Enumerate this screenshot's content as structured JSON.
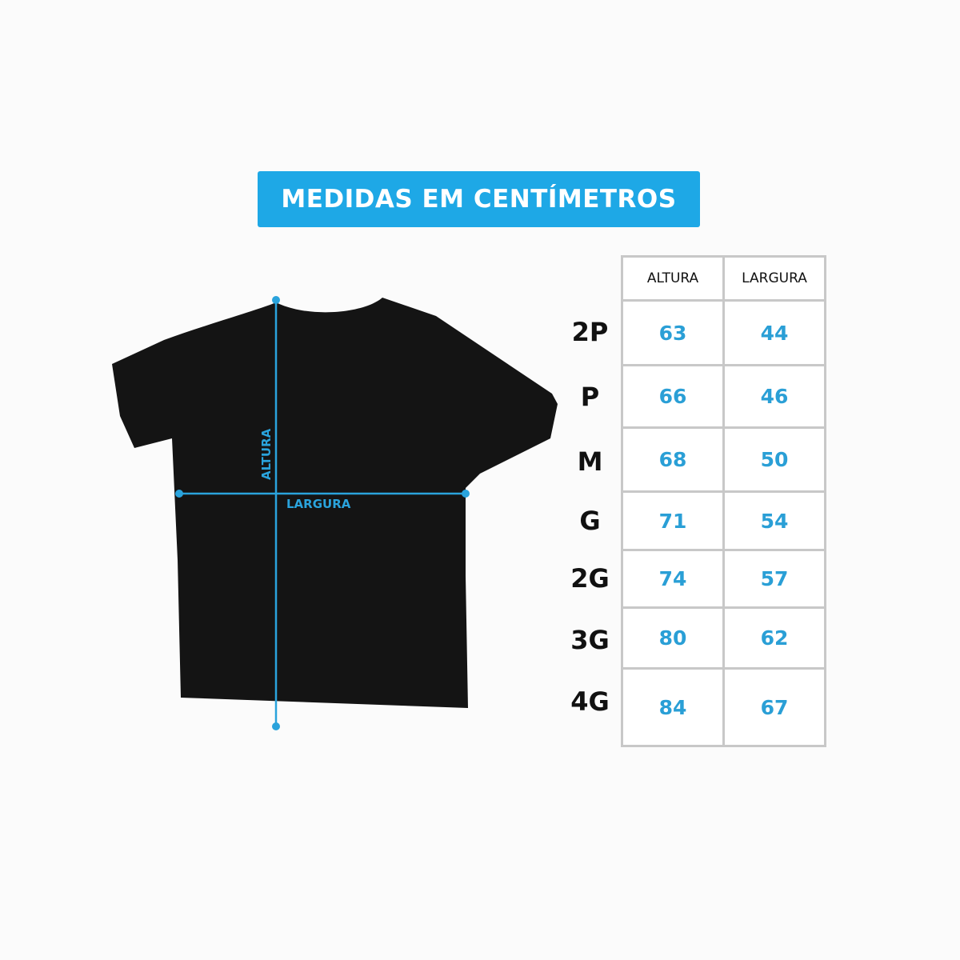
{
  "banner": {
    "title": "MEDIDAS EM CENTÍMETROS"
  },
  "diagram": {
    "height_label": "ALTURA",
    "width_label": "LARGURA"
  },
  "table": {
    "headers": [
      "ALTURA",
      "LARGURA"
    ],
    "rows": [
      {
        "size": "2P",
        "altura": "63",
        "largura": "44"
      },
      {
        "size": "P",
        "altura": "66",
        "largura": "46"
      },
      {
        "size": "M",
        "altura": "68",
        "largura": "50"
      },
      {
        "size": "G",
        "altura": "71",
        "largura": "54"
      },
      {
        "size": "2G",
        "altura": "74",
        "largura": "57"
      },
      {
        "size": "3G",
        "altura": "80",
        "largura": "62"
      },
      {
        "size": "4G",
        "altura": "84",
        "largura": "67"
      }
    ]
  },
  "colors": {
    "accent": "#1ea8e6",
    "shirt": "#111111",
    "grid": "#c8c8c8"
  }
}
